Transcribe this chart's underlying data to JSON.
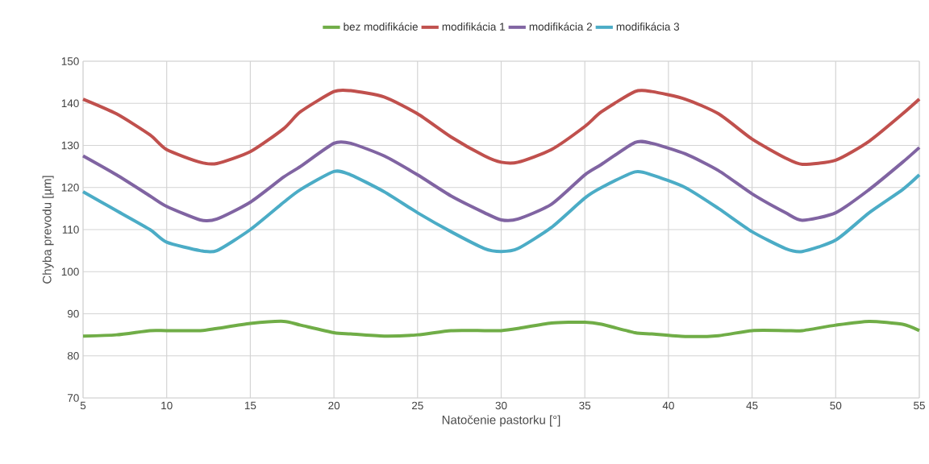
{
  "chart_data": {
    "type": "line",
    "xlabel": "Natočenie pastorku [°]",
    "ylabel": "Chyba prevodu [µm]",
    "x": [
      5,
      7,
      9,
      10,
      12,
      13,
      15,
      17,
      18,
      20,
      21,
      23,
      25,
      27,
      29,
      30,
      31,
      33,
      35,
      36,
      38,
      39,
      41,
      43,
      45,
      47,
      48,
      50,
      52,
      54,
      55
    ],
    "series": [
      {
        "name": "bez modifikácie",
        "color": "#70ad47",
        "values": [
          84.7,
          85,
          86,
          86,
          86,
          86.5,
          87.7,
          88.2,
          87.3,
          85.5,
          85.2,
          84.7,
          85,
          86,
          86,
          86,
          86.5,
          87.8,
          88,
          87.5,
          85.5,
          85.2,
          84.6,
          84.8,
          86,
          86,
          86,
          87.3,
          88.2,
          87.5,
          86
        ]
      },
      {
        "name": "modifikácia 1",
        "color": "#c0504d",
        "values": [
          141,
          137.5,
          132.5,
          129,
          126,
          125.7,
          128.5,
          134,
          138,
          142.8,
          143,
          141.5,
          137.5,
          132,
          127.5,
          126,
          126,
          129,
          134.5,
          138,
          142.8,
          142.8,
          141,
          137.5,
          131.5,
          127,
          125.5,
          126.5,
          131,
          137.5,
          141
        ]
      },
      {
        "name": "modifikácia 2",
        "color": "#8064a2",
        "values": [
          127.5,
          123,
          118,
          115.5,
          112.3,
          112.5,
          116.5,
          122.5,
          125,
          130.5,
          130.5,
          127.5,
          123,
          118,
          114,
          112.3,
          112.5,
          116,
          123,
          125.5,
          130.7,
          130.5,
          128,
          124,
          118.5,
          114,
          112.2,
          114,
          119.5,
          126,
          129.5
        ]
      },
      {
        "name": "modifikácia 3",
        "color": "#4bacc6",
        "values": [
          119,
          114.5,
          110,
          107,
          105,
          105,
          110,
          116.5,
          119.5,
          123.8,
          123,
          119,
          114,
          109.5,
          105.5,
          104.8,
          105.5,
          110.5,
          117.5,
          120,
          123.7,
          123,
          120,
          115,
          109.5,
          105.5,
          104.8,
          107.5,
          114,
          119.5,
          123
        ]
      }
    ],
    "xlim": [
      5,
      55
    ],
    "xticks": [
      5,
      10,
      15,
      20,
      25,
      30,
      35,
      40,
      45,
      50,
      55
    ],
    "ylim": [
      70,
      150
    ],
    "yticks": [
      70,
      80,
      90,
      100,
      110,
      120,
      130,
      140,
      150
    ],
    "grid": true,
    "legend": "top",
    "marker": "none",
    "line_style": "solid"
  }
}
